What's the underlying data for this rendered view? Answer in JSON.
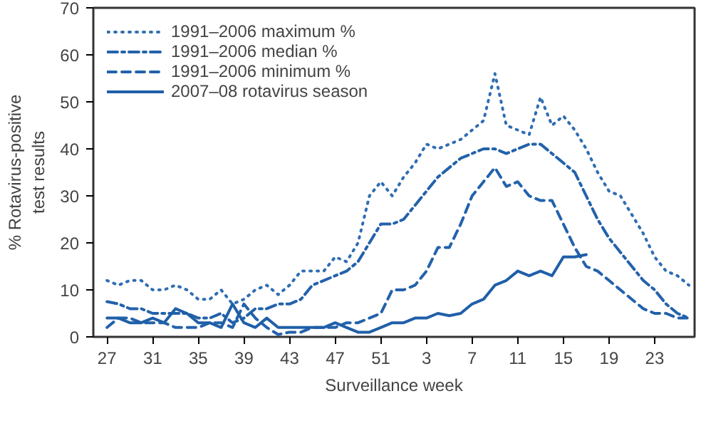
{
  "chart_data": {
    "type": "line",
    "xlabel": "Surveillance week",
    "ylabel": "% Rotavirus-positive\ntest results",
    "categories": [
      "27",
      null,
      null,
      null,
      "31",
      null,
      null,
      null,
      "35",
      null,
      null,
      null,
      "39",
      null,
      null,
      null,
      "43",
      null,
      null,
      null,
      "47",
      null,
      null,
      null,
      "51",
      null,
      null,
      null,
      "3",
      null,
      null,
      null,
      "7",
      null,
      null,
      null,
      "11",
      null,
      null,
      null,
      "15",
      null,
      null,
      null,
      "19",
      null,
      null,
      null,
      "23",
      null,
      null,
      null
    ],
    "series": [
      {
        "name": "1991–2006 maximum %",
        "color": "#2f6db3",
        "line_style": "dotted",
        "values": [
          12,
          11,
          12,
          12,
          10,
          10,
          11,
          10,
          8,
          8,
          10,
          7,
          8,
          10,
          11,
          9,
          11,
          14,
          14,
          14,
          17,
          16,
          20,
          30,
          33,
          30,
          34,
          37,
          41,
          40,
          41,
          42,
          44,
          46,
          56,
          45,
          44,
          43,
          51,
          45,
          47,
          44,
          40,
          35,
          31,
          30,
          26,
          22,
          17,
          14,
          13,
          11
        ]
      },
      {
        "name": "1991–2006 median %",
        "color": "#2362ab",
        "line_style": "dashdot",
        "values": [
          7.5,
          7,
          6,
          6,
          5,
          5,
          5,
          5,
          4,
          4,
          5,
          3,
          4,
          6,
          6,
          7,
          7,
          8,
          11,
          12,
          13,
          14,
          16,
          20,
          24,
          24,
          25,
          28,
          31,
          34,
          36,
          38,
          39,
          40,
          40,
          39,
          40,
          41,
          41,
          39,
          37,
          35,
          30,
          25,
          21,
          18,
          15,
          12,
          10,
          7,
          5,
          4
        ]
      },
      {
        "name": "1991–2006 minimum %",
        "color": "#2362ab",
        "line_style": "dashed",
        "values": [
          2,
          4,
          4,
          3,
          3,
          3,
          2,
          2,
          2,
          3,
          3,
          2,
          7,
          4,
          2,
          0.5,
          1,
          1,
          2,
          2,
          2,
          3,
          3,
          4,
          5,
          10,
          10,
          11,
          14,
          19,
          19,
          24,
          30,
          33,
          36,
          32,
          33,
          30,
          29,
          29,
          24,
          19,
          15,
          14,
          12,
          10,
          8,
          6,
          5,
          5,
          4,
          4
        ]
      },
      {
        "name": "2007–08 rotavirus season",
        "color": "#1f5fa8",
        "line_style": "solid",
        "values": [
          4,
          4,
          3,
          3,
          4,
          3,
          6,
          5,
          3,
          3,
          2,
          7,
          3,
          2,
          4,
          2,
          2,
          2,
          2,
          2,
          3,
          2,
          1,
          1,
          2,
          3,
          3,
          4,
          4,
          5,
          4.5,
          5,
          7,
          8,
          11,
          12,
          14,
          13,
          14,
          13,
          17,
          17,
          17.5,
          null,
          null,
          null,
          null,
          null,
          null,
          null,
          null,
          null
        ]
      }
    ],
    "ylim": [
      0,
      70
    ],
    "yticks": [
      0,
      10,
      20,
      30,
      40,
      50,
      60,
      70
    ],
    "legend": "top left",
    "grid": false
  }
}
